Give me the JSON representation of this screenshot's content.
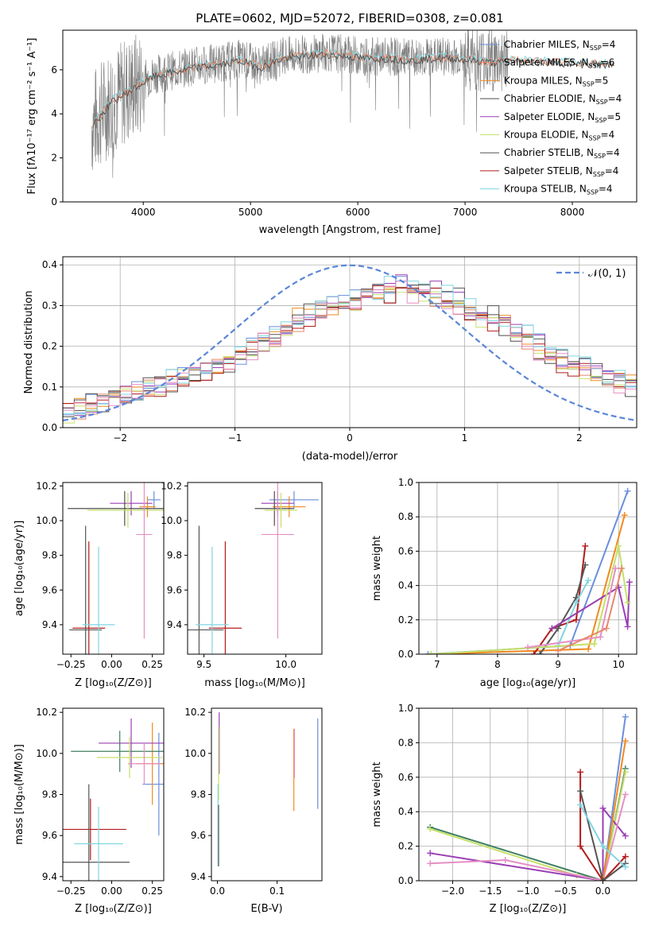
{
  "page_title": "PLATE=0602, MJD=52072, FIBERID=0308, z=0.081",
  "colors": {
    "Chabrier MILES": "#6a8fdc",
    "Salpeter MILES": "#e6886a",
    "Kroupa MILES": "#f08a1e",
    "Chabrier ELODIE": "#4e4e4e",
    "Salpeter ELODIE": "#9a3fb4",
    "Kroupa ELODIE": "#c6e06a",
    "Chabrier STELIB": "#555555",
    "Salpeter STELIB": "#b31b1b",
    "Kroupa STELIB": "#7fd6e0",
    "pink": "#e58fc4",
    "green": "#3f7f5f",
    "data": "#808080",
    "gauss": "#5a86d8"
  },
  "chart_data": [
    {
      "type": "line",
      "title": "PLATE=0602, MJD=52072, FIBERID=0308, z=0.081",
      "xlabel": "wavelength [Angstrom, rest frame]",
      "ylabel": "Flux [fλ10⁻¹⁷ erg cm⁻² s⁻¹ A⁻¹]",
      "xlim": [
        3250,
        8600
      ],
      "ylim": [
        0,
        7.8
      ],
      "xticks": [
        4000,
        5000,
        6000,
        7000,
        8000
      ],
      "yticks": [
        0,
        2,
        4,
        6
      ],
      "legend": [
        "Chabrier MILES, N_SSP=4",
        "Salpeter MILES, N_SSP=6",
        "Kroupa MILES, N_SSP=5",
        "Chabrier ELODIE, N_SSP=4",
        "Salpeter ELODIE, N_SSP=5",
        "Kroupa ELODIE, N_SSP=4",
        "Chabrier STELIB, N_SSP=4",
        "Salpeter STELIB, N_SSP=4",
        "Kroupa STELIB, N_SSP=4"
      ],
      "legend_display": [
        {
          "pre": "Chabrier MILES, N",
          "sub": "SSP",
          "post": "=4"
        },
        {
          "pre": "Salpeter MILES, N",
          "sub": "SSP",
          "post": "=6"
        },
        {
          "pre": "Kroupa MILES, N",
          "sub": "SSP",
          "post": "=5"
        },
        {
          "pre": "Chabrier ELODIE, N",
          "sub": "SSP",
          "post": "=4"
        },
        {
          "pre": "Salpeter ELODIE, N",
          "sub": "SSP",
          "post": "=5"
        },
        {
          "pre": "Kroupa ELODIE, N",
          "sub": "SSP",
          "post": "=4"
        },
        {
          "pre": "Chabrier STELIB, N",
          "sub": "SSP",
          "post": "=4"
        },
        {
          "pre": "Salpeter STELIB, N",
          "sub": "SSP",
          "post": "=4"
        },
        {
          "pre": "Kroupa STELIB, N",
          "sub": "SSP",
          "post": "=4"
        }
      ],
      "legend_position": "top-right",
      "grid": false,
      "continuum": {
        "x": [
          3520,
          3700,
          3900,
          4100,
          4300,
          4500,
          4700,
          4900,
          5100,
          5300,
          5500,
          5700,
          5900,
          6100,
          6300,
          6500,
          6700,
          6900,
          7100,
          7300,
          7400
        ],
        "y": [
          3.5,
          4.6,
          5.2,
          5.8,
          6.0,
          6.2,
          6.3,
          6.5,
          6.2,
          6.6,
          6.7,
          6.8,
          6.7,
          6.6,
          6.6,
          6.5,
          6.6,
          6.6,
          6.5,
          6.4,
          6.5
        ]
      },
      "model_continuum": {
        "x": [
          7300,
          7500,
          7700,
          7900,
          8100,
          8300,
          8400
        ],
        "y": [
          6.5,
          6.6,
          6.7,
          6.6,
          6.5,
          6.4,
          6.3
        ]
      }
    },
    {
      "type": "step",
      "xlabel": "(data-model)/error",
      "ylabel": "Normed distribution",
      "xlim": [
        -2.5,
        2.5
      ],
      "ylim": [
        0,
        0.42
      ],
      "xticks": [
        -2,
        -1,
        0,
        1,
        2
      ],
      "yticks": [
        0.0,
        0.1,
        0.2,
        0.3,
        0.4
      ],
      "legend": [
        "𝒩(0, 1)"
      ],
      "legend_position": "top-right",
      "grid": true,
      "bin_width": 0.1,
      "bin_start": -2.5,
      "series_values": [
        [
          0.04,
          0.05,
          0.06,
          0.065,
          0.07,
          0.08,
          0.09,
          0.1,
          0.11,
          0.12,
          0.125,
          0.13,
          0.14,
          0.15,
          0.16,
          0.18,
          0.2,
          0.21,
          0.23,
          0.25,
          0.27,
          0.28,
          0.29,
          0.3,
          0.31,
          0.32,
          0.33,
          0.34,
          0.35,
          0.36,
          0.35,
          0.35,
          0.34,
          0.33,
          0.32,
          0.3,
          0.29,
          0.28,
          0.27,
          0.25,
          0.23,
          0.21,
          0.19,
          0.17,
          0.16,
          0.15,
          0.14,
          0.13,
          0.12,
          0.11
        ],
        [
          0.035,
          0.045,
          0.055,
          0.06,
          0.07,
          0.075,
          0.085,
          0.095,
          0.1,
          0.11,
          0.12,
          0.125,
          0.135,
          0.145,
          0.16,
          0.17,
          0.19,
          0.21,
          0.22,
          0.24,
          0.26,
          0.27,
          0.28,
          0.29,
          0.3,
          0.31,
          0.32,
          0.33,
          0.33,
          0.34,
          0.33,
          0.33,
          0.32,
          0.31,
          0.3,
          0.28,
          0.27,
          0.26,
          0.25,
          0.23,
          0.21,
          0.19,
          0.18,
          0.16,
          0.15,
          0.14,
          0.13,
          0.12,
          0.11,
          0.1
        ]
      ],
      "gaussian": {
        "mu": 0,
        "sigma": 1
      }
    },
    {
      "type": "scatter-errorbar",
      "xlabel": "Z [log₁₀(Z/Z⊙)]",
      "ylabel": "age  [log₁₀(age/yr)]",
      "xlim": [
        -0.3,
        0.32
      ],
      "ylim": [
        9.23,
        10.22
      ],
      "xticks": [
        -0.25,
        0.0,
        0.25
      ],
      "yticks": [
        9.4,
        9.6,
        9.8,
        10.0,
        10.2
      ],
      "points": [
        {
          "x": 0.26,
          "y": 10.12,
          "xerr": 0.04,
          "yerr": 0.05,
          "c": "Chabrier MILES"
        },
        {
          "x": 0.22,
          "y": 10.08,
          "xerr": 0.05,
          "yerr": 0.06,
          "c": "Kroupa MILES"
        },
        {
          "x": 0.12,
          "y": 10.1,
          "xerr": 0.13,
          "yerr": 0.07,
          "c": "Salpeter ELODIE"
        },
        {
          "x": 0.08,
          "y": 10.07,
          "xerr": 0.35,
          "yerr": 0.1,
          "c": "Chabrier ELODIE"
        },
        {
          "x": 0.1,
          "y": 10.06,
          "xerr": 0.25,
          "yerr": 0.1,
          "c": "Kroupa ELODIE"
        },
        {
          "x": 0.2,
          "y": 9.92,
          "xerr": 0.05,
          "yerr": 0.6,
          "c": "pink"
        },
        {
          "x": -0.14,
          "y": 9.38,
          "xerr": 0.1,
          "yerr": 0.5,
          "c": "Salpeter STELIB"
        },
        {
          "x": -0.16,
          "y": 9.37,
          "xerr": 0.1,
          "yerr": 0.6,
          "c": "Chabrier STELIB"
        },
        {
          "x": -0.08,
          "y": 9.4,
          "xerr": 0.1,
          "yerr": 0.45,
          "c": "Kroupa STELIB"
        }
      ]
    },
    {
      "type": "scatter-errorbar",
      "xlabel": "mass [log₁₀(M/M⊙)]",
      "ylabel": "",
      "xlim": [
        9.4,
        10.22
      ],
      "ylim": [
        9.23,
        10.22
      ],
      "xticks": [
        9.5,
        10.0
      ],
      "yticks": [
        9.4,
        9.6,
        9.8,
        10.0,
        10.2
      ],
      "points": [
        {
          "x": 10.05,
          "y": 10.12,
          "xerr": 0.15,
          "yerr": 0.05,
          "c": "Chabrier MILES"
        },
        {
          "x": 10.02,
          "y": 10.08,
          "xerr": 0.1,
          "yerr": 0.06,
          "c": "Kroupa MILES"
        },
        {
          "x": 9.95,
          "y": 10.1,
          "xerr": 0.1,
          "yerr": 0.07,
          "c": "Salpeter ELODIE"
        },
        {
          "x": 9.93,
          "y": 10.07,
          "xerr": 0.12,
          "yerr": 0.1,
          "c": "Chabrier ELODIE"
        },
        {
          "x": 9.97,
          "y": 10.06,
          "xerr": 0.1,
          "yerr": 0.1,
          "c": "Kroupa ELODIE"
        },
        {
          "x": 9.95,
          "y": 9.92,
          "xerr": 0.1,
          "yerr": 0.6,
          "c": "pink"
        },
        {
          "x": 9.63,
          "y": 9.38,
          "xerr": 0.1,
          "yerr": 0.5,
          "c": "Salpeter STELIB"
        },
        {
          "x": 9.47,
          "y": 9.37,
          "xerr": 0.15,
          "yerr": 0.6,
          "c": "Chabrier STELIB"
        },
        {
          "x": 9.55,
          "y": 9.4,
          "xerr": 0.1,
          "yerr": 0.45,
          "c": "Kroupa STELIB"
        }
      ]
    },
    {
      "type": "line",
      "xlabel": "age  [log₁₀(age/yr)]",
      "ylabel": "mass weight",
      "xlim": [
        6.7,
        10.3
      ],
      "ylim": [
        0,
        1.0
      ],
      "xticks": [
        7,
        8,
        9,
        10
      ],
      "yticks": [
        0.0,
        0.2,
        0.4,
        0.6,
        0.8,
        1.0
      ],
      "grid": true,
      "series": [
        {
          "c": "Chabrier MILES",
          "x": [
            6.85,
            9.2,
            10.15
          ],
          "y": [
            0.0,
            0.05,
            0.95
          ]
        },
        {
          "c": "Kroupa MILES",
          "x": [
            6.9,
            9.5,
            10.1
          ],
          "y": [
            0.0,
            0.03,
            0.81
          ]
        },
        {
          "c": "Salpeter STELIB",
          "x": [
            8.6,
            8.9,
            9.3,
            9.45
          ],
          "y": [
            0.0,
            0.15,
            0.2,
            0.63
          ]
        },
        {
          "c": "Chabrier STELIB",
          "x": [
            8.7,
            9.0,
            9.3,
            9.45
          ],
          "y": [
            0.0,
            0.15,
            0.33,
            0.52
          ]
        },
        {
          "c": "Kroupa STELIB",
          "x": [
            9.0,
            9.3,
            9.5
          ],
          "y": [
            0.05,
            0.3,
            0.43
          ]
        },
        {
          "c": "Salpeter ELODIE",
          "x": [
            8.9,
            10.0,
            10.15,
            10.18
          ],
          "y": [
            0.15,
            0.39,
            0.16,
            0.42
          ]
        },
        {
          "c": "Kroupa ELODIE",
          "x": [
            6.9,
            9.6,
            10.0,
            10.15
          ],
          "y": [
            0.0,
            0.06,
            0.63,
            0.3
          ]
        },
        {
          "c": "pink",
          "x": [
            8.5,
            9.7,
            9.95
          ],
          "y": [
            0.04,
            0.1,
            0.5
          ]
        },
        {
          "c": "Salpeter MILES",
          "x": [
            9.0,
            9.8,
            10.05
          ],
          "y": [
            0.02,
            0.15,
            0.5
          ]
        }
      ]
    },
    {
      "type": "scatter-errorbar",
      "xlabel": "Z [log₁₀(Z/Z⊙)]",
      "ylabel": "mass [log₁₀(M/M⊙)]",
      "xlim": [
        -0.3,
        0.32
      ],
      "ylim": [
        9.38,
        10.22
      ],
      "xticks": [
        -0.25,
        0.0,
        0.25
      ],
      "yticks": [
        9.4,
        9.6,
        9.8,
        10.0,
        10.2
      ],
      "points": [
        {
          "x": 0.29,
          "y": 9.85,
          "xerr": 0.1,
          "yerr": 0.25,
          "c": "Chabrier MILES"
        },
        {
          "x": 0.25,
          "y": 9.95,
          "xerr": 0.1,
          "yerr": 0.2,
          "c": "Kroupa MILES"
        },
        {
          "x": 0.12,
          "y": 10.05,
          "xerr": 0.2,
          "yerr": 0.12,
          "c": "Salpeter ELODIE"
        },
        {
          "x": 0.05,
          "y": 10.01,
          "xerr": 0.3,
          "yerr": 0.1,
          "c": "green"
        },
        {
          "x": 0.11,
          "y": 9.98,
          "xerr": 0.2,
          "yerr": 0.1,
          "c": "Kroupa ELODIE"
        },
        {
          "x": 0.2,
          "y": 9.95,
          "xerr": 0.1,
          "yerr": 0.1,
          "c": "pink"
        },
        {
          "x": -0.13,
          "y": 9.63,
          "xerr": 0.22,
          "yerr": 0.15,
          "c": "Salpeter STELIB"
        },
        {
          "x": -0.14,
          "y": 9.47,
          "xerr": 0.25,
          "yerr": 0.38,
          "c": "Chabrier STELIB"
        },
        {
          "x": -0.08,
          "y": 9.56,
          "xerr": 0.15,
          "yerr": 0.18,
          "c": "Kroupa STELIB"
        }
      ]
    },
    {
      "type": "scatter-errorbar",
      "xlabel": "E(B-V)",
      "ylabel": "",
      "xlim": [
        -0.01,
        0.175
      ],
      "ylim": [
        9.38,
        10.22
      ],
      "xticks": [
        0.0,
        0.1
      ],
      "yticks": [
        9.4,
        9.6,
        9.8,
        10.0,
        10.2
      ],
      "points": [
        {
          "x": 0.168,
          "y": 9.95,
          "xerr": 0,
          "yerr": 0.22,
          "c": "Chabrier MILES"
        },
        {
          "x": 0.128,
          "y": 9.92,
          "xerr": 0,
          "yerr": 0.2,
          "c": "Kroupa MILES"
        },
        {
          "x": 0.129,
          "y": 10.0,
          "xerr": 0,
          "yerr": 0.12,
          "c": "pink"
        },
        {
          "x": 0.003,
          "y": 10.05,
          "xerr": 0,
          "yerr": 0.15,
          "c": "Salpeter ELODIE"
        },
        {
          "x": 0.002,
          "y": 9.95,
          "xerr": 0,
          "yerr": 0.18,
          "c": "Kroupa ELODIE"
        },
        {
          "x": 0.001,
          "y": 9.65,
          "xerr": 0,
          "yerr": 0.2,
          "c": "Kroupa STELIB"
        },
        {
          "x": 0.002,
          "y": 9.6,
          "xerr": 0,
          "yerr": 0.15,
          "c": "Chabrier STELIB"
        }
      ]
    },
    {
      "type": "line",
      "xlabel": "Z [log₁₀(Z/Z⊙)]",
      "ylabel": "mass weight",
      "xlim": [
        -2.45,
        0.45
      ],
      "ylim": [
        0,
        1.0
      ],
      "xticks": [
        -2.0,
        -1.5,
        -1.0,
        -0.5,
        0.0
      ],
      "yticks": [
        0.0,
        0.2,
        0.4,
        0.6,
        0.8,
        1.0
      ],
      "grid": true,
      "series": [
        {
          "c": "green",
          "x": [
            -2.3,
            0.0,
            0.3
          ],
          "y": [
            0.31,
            0.0,
            0.65
          ]
        },
        {
          "c": "Kroupa ELODIE",
          "x": [
            -2.3,
            -0.35,
            0.0,
            0.3
          ],
          "y": [
            0.3,
            0.03,
            0.0,
            0.63
          ]
        },
        {
          "c": "Salpeter ELODIE",
          "x": [
            -2.3,
            0.0,
            0.0,
            0.3
          ],
          "y": [
            0.16,
            0.0,
            0.42,
            0.26
          ]
        },
        {
          "c": "pink",
          "x": [
            -2.3,
            -1.3,
            0.0,
            0.3
          ],
          "y": [
            0.1,
            0.12,
            0.0,
            0.5
          ]
        },
        {
          "c": "Chabrier MILES",
          "x": [
            0.0,
            0.3
          ],
          "y": [
            0.0,
            0.95
          ]
        },
        {
          "c": "Kroupa MILES",
          "x": [
            0.0,
            0.3
          ],
          "y": [
            0.0,
            0.81
          ]
        },
        {
          "c": "Salpeter STELIB",
          "x": [
            -0.3,
            -0.3,
            0.0,
            0.3
          ],
          "y": [
            0.63,
            0.2,
            0.0,
            0.14
          ]
        },
        {
          "c": "Chabrier STELIB",
          "x": [
            -0.3,
            0.0,
            0.3
          ],
          "y": [
            0.52,
            0.0,
            0.1
          ]
        },
        {
          "c": "Kroupa STELIB",
          "x": [
            -0.3,
            0.0,
            0.3
          ],
          "y": [
            0.44,
            0.2,
            0.08
          ]
        }
      ]
    }
  ]
}
